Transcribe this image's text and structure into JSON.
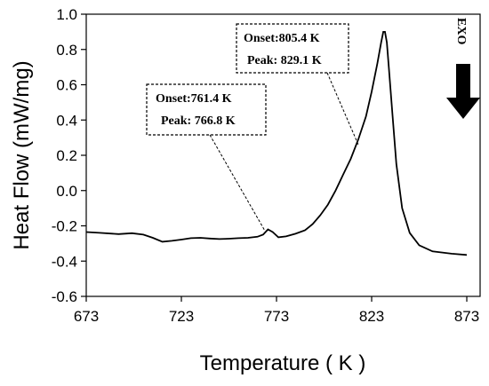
{
  "chart_data": {
    "type": "line",
    "title": "",
    "xlabel": "Temperature ( K )",
    "ylabel": "Heat Flow (mW/mg)",
    "xlim": [
      673,
      880
    ],
    "ylim": [
      -0.6,
      1.0
    ],
    "x_ticks": [
      673,
      723,
      773,
      823,
      873
    ],
    "y_ticks": [
      -0.6,
      -0.4,
      -0.2,
      0.0,
      0.2,
      0.4,
      0.6,
      0.8,
      1.0
    ],
    "x_tick_labels": [
      "673",
      "723",
      "773",
      "823",
      "873"
    ],
    "y_tick_labels": [
      "-0.6",
      "-0.4",
      "-0.2",
      "0.0",
      "0.2",
      "0.4",
      "0.6",
      "0.8",
      "1.0"
    ],
    "grid": false,
    "series": [
      {
        "name": "",
        "x": [
          673,
          680,
          690,
          697,
          703,
          708,
          713,
          718,
          723,
          728,
          733,
          738,
          743,
          748,
          753,
          758,
          763,
          766,
          768.5,
          771,
          774,
          778,
          783,
          788,
          792,
          796,
          800,
          804,
          808,
          812,
          816,
          820,
          823,
          826,
          828,
          829.1,
          830,
          831,
          832,
          834,
          836,
          839,
          843,
          848,
          855,
          865,
          873
        ],
        "y": [
          -0.235,
          -0.24,
          -0.247,
          -0.242,
          -0.25,
          -0.268,
          -0.29,
          -0.285,
          -0.278,
          -0.27,
          -0.268,
          -0.272,
          -0.275,
          -0.273,
          -0.27,
          -0.268,
          -0.262,
          -0.25,
          -0.22,
          -0.235,
          -0.265,
          -0.26,
          -0.245,
          -0.225,
          -0.19,
          -0.14,
          -0.08,
          0.0,
          0.09,
          0.18,
          0.29,
          0.42,
          0.56,
          0.72,
          0.84,
          0.9,
          0.9,
          0.84,
          0.7,
          0.42,
          0.15,
          -0.1,
          -0.24,
          -0.31,
          -0.345,
          -0.358,
          -0.365
        ]
      }
    ],
    "annotations": [
      {
        "lines": [
          "Onset:761.4 K",
          "Peak: 766.8 K"
        ],
        "target": [
          767,
          -0.23
        ]
      },
      {
        "lines": [
          "Onset:805.4 K",
          "Peak: 829.1 K"
        ],
        "target": [
          816,
          0.26
        ]
      }
    ],
    "exo_label": "EXO"
  }
}
